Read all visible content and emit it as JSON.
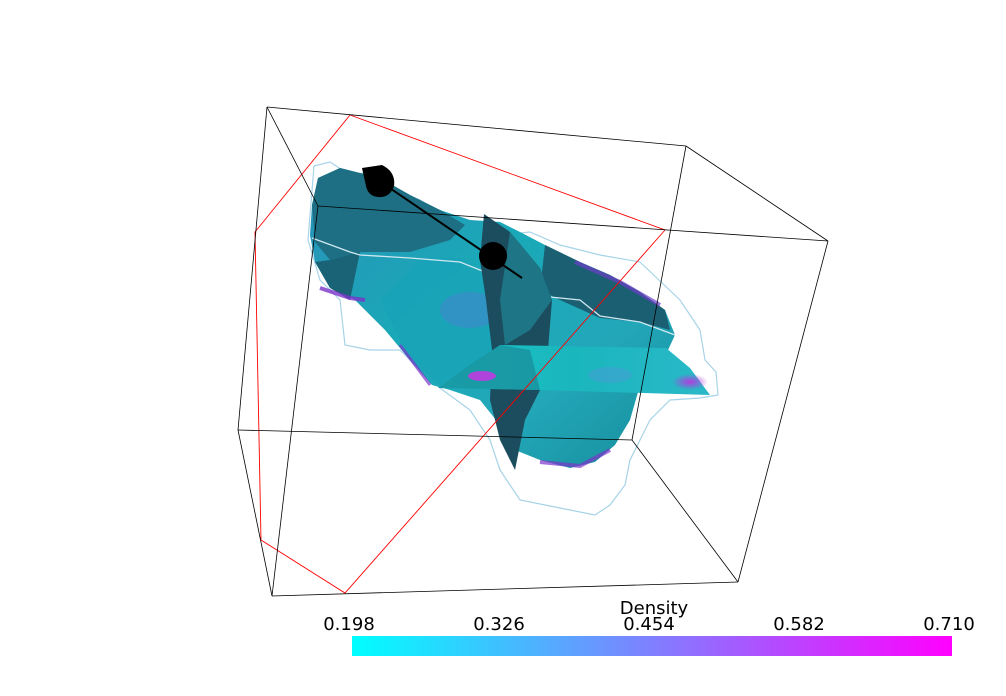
{
  "colorbar": {
    "title": "Density",
    "ticks": [
      "0.198",
      "0.326",
      "0.454",
      "0.582",
      "0.710"
    ],
    "min_color": "#00ffff",
    "max_color": "#ff00ff"
  },
  "colors": {
    "bounding_box": "#000000",
    "slice_plane_outline": "#ff0000",
    "contour_outline": "#a7d3e8",
    "surface_base": "#1a9fae",
    "surface_dark": "#1d5b6b",
    "handles": "#000000"
  }
}
